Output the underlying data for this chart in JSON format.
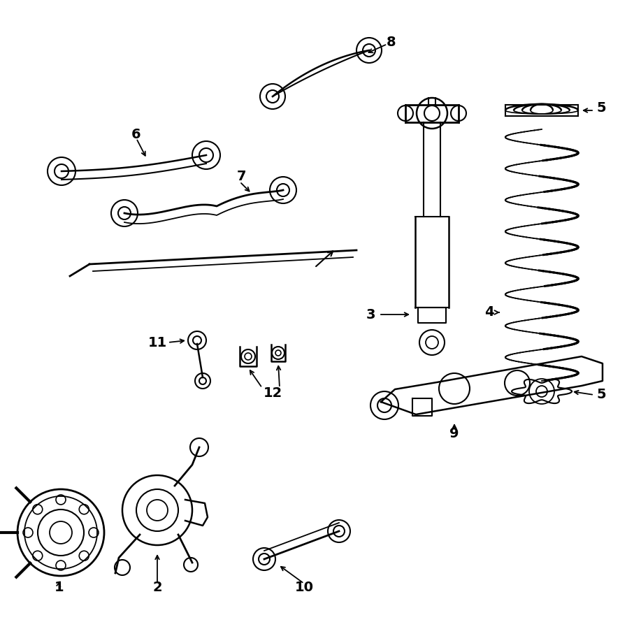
{
  "background_color": "#ffffff",
  "line_color": "#000000",
  "lw": 1.5,
  "fig_w": 8.97,
  "fig_h": 9.0,
  "dpi": 100,
  "xmax": 897,
  "ymax": 900
}
